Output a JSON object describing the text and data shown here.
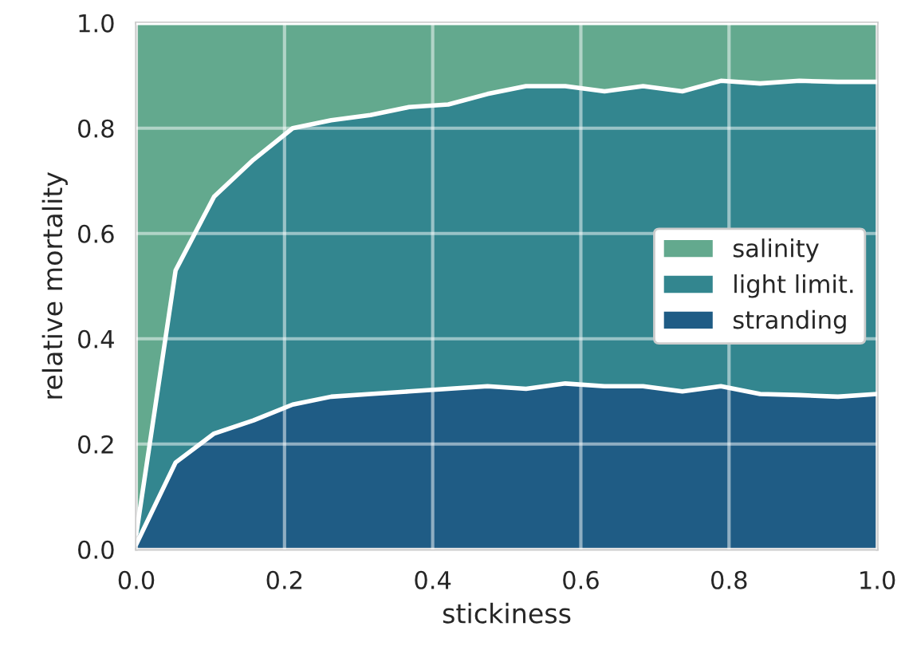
{
  "chart_data": {
    "type": "area",
    "stacked": true,
    "xlabel": "stickiness",
    "ylabel": "relative mortality",
    "x": [
      0,
      0.053,
      0.105,
      0.158,
      0.211,
      0.263,
      0.316,
      0.368,
      0.421,
      0.474,
      0.526,
      0.579,
      0.632,
      0.684,
      0.737,
      0.789,
      0.842,
      0.895,
      0.947,
      1.0
    ],
    "series": [
      {
        "name": "stranding",
        "color": "#1f5c85",
        "values": [
          0.01,
          0.165,
          0.22,
          0.245,
          0.275,
          0.29,
          0.295,
          0.3,
          0.305,
          0.31,
          0.305,
          0.315,
          0.31,
          0.31,
          0.3,
          0.31,
          0.295,
          0.293,
          0.29,
          0.295
        ]
      },
      {
        "name": "light limit.",
        "color": "#33868f",
        "values": [
          0.02,
          0.365,
          0.45,
          0.495,
          0.525,
          0.525,
          0.53,
          0.54,
          0.54,
          0.555,
          0.575,
          0.565,
          0.56,
          0.57,
          0.57,
          0.58,
          0.59,
          0.597,
          0.598,
          0.593
        ]
      },
      {
        "name": "salinity",
        "color": "#63a98e",
        "values": [
          0.97,
          0.47,
          0.33,
          0.26,
          0.2,
          0.185,
          0.175,
          0.16,
          0.155,
          0.135,
          0.12,
          0.12,
          0.13,
          0.12,
          0.13,
          0.11,
          0.115,
          0.11,
          0.112,
          0.112
        ]
      }
    ],
    "xlim": [
      0.0,
      1.0
    ],
    "ylim": [
      0.0,
      1.0
    ],
    "xticks": [
      {
        "value": 0,
        "label": "0.0"
      },
      {
        "value": 0.2,
        "label": "0.2"
      },
      {
        "value": 0.4,
        "label": "0.4"
      },
      {
        "value": 0.6,
        "label": "0.6"
      },
      {
        "value": 0.8,
        "label": "0.8"
      },
      {
        "value": 1.0,
        "label": "1.0"
      }
    ],
    "yticks": [
      {
        "value": 0,
        "label": "0.0"
      },
      {
        "value": 0.2,
        "label": "0.2"
      },
      {
        "value": 0.4,
        "label": "0.4"
      },
      {
        "value": 0.6,
        "label": "0.6"
      },
      {
        "value": 0.8,
        "label": "0.8"
      },
      {
        "value": 1.0,
        "label": "1.0"
      }
    ],
    "grid": true,
    "legend": "center right"
  }
}
